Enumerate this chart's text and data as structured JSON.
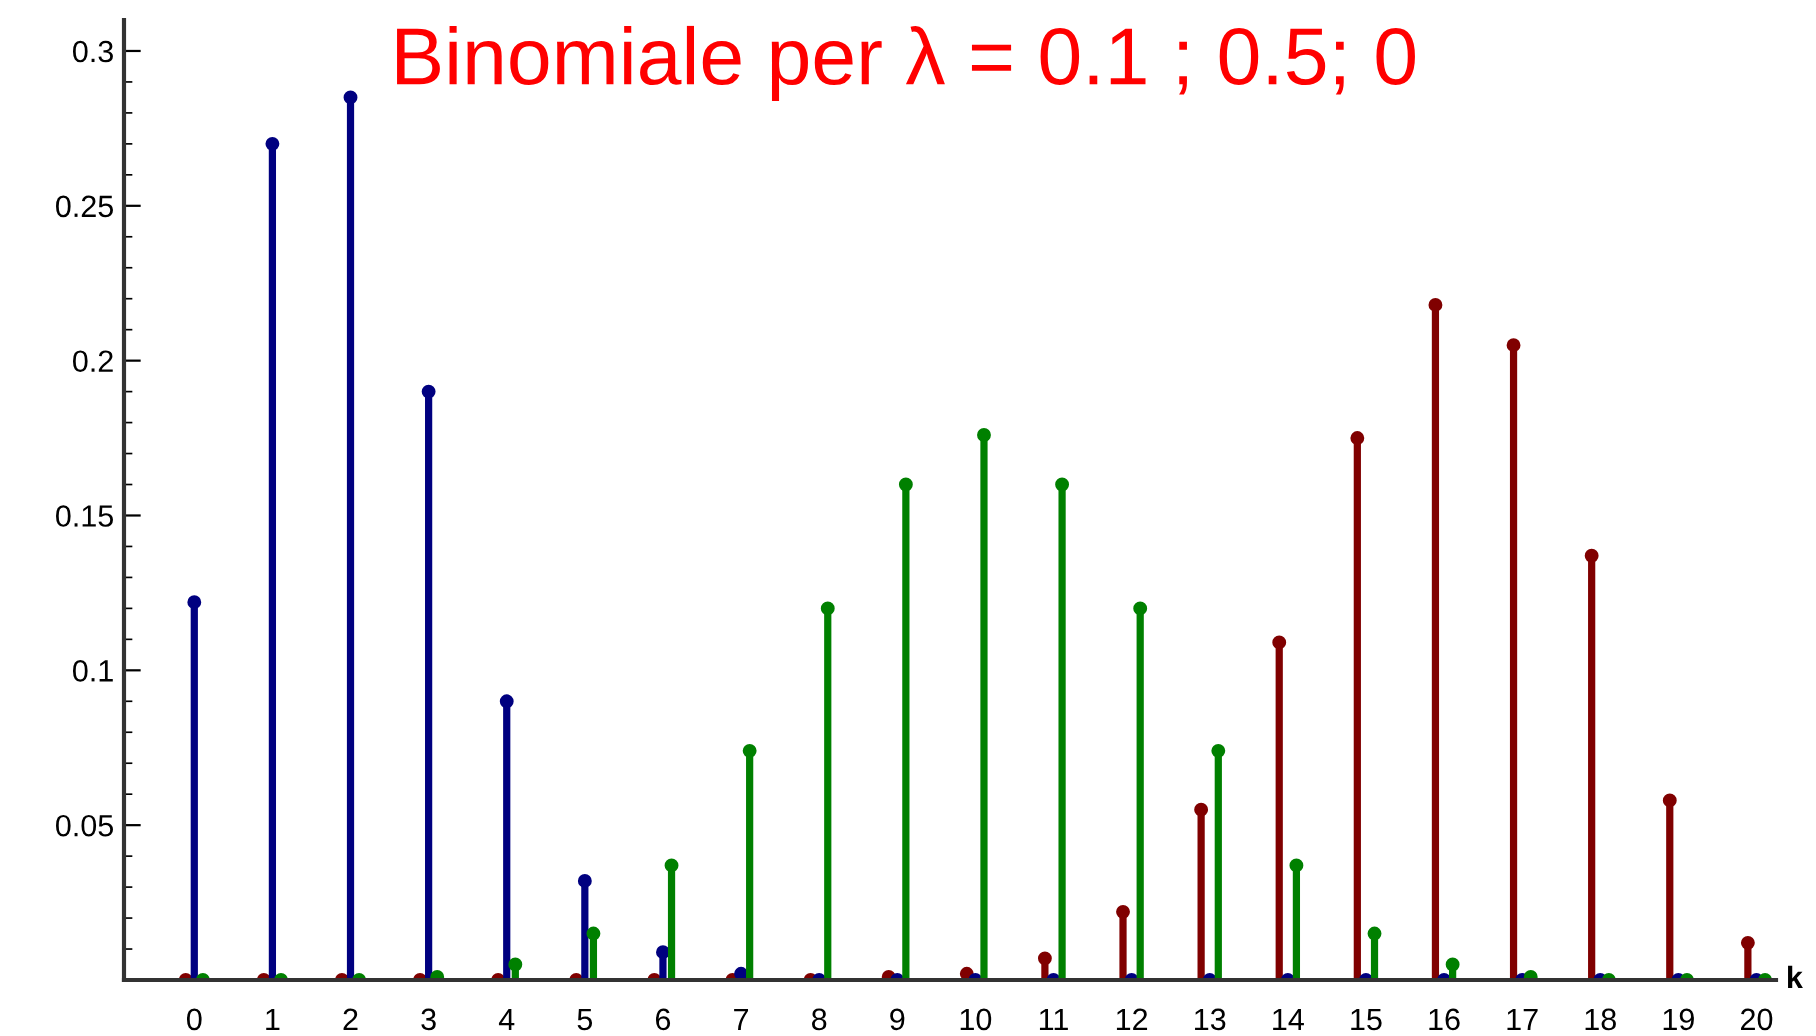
{
  "chart_data": {
    "type": "lollipop",
    "title": "Binomiale per λ = 0.1 ; 0.5; 0",
    "xlabel": "k",
    "categories": [
      "0",
      "1",
      "2",
      "3",
      "4",
      "5",
      "6",
      "7",
      "8",
      "9",
      "10",
      "11",
      "12",
      "13",
      "14",
      "15",
      "16",
      "17",
      "18",
      "19",
      "20"
    ],
    "series": [
      {
        "color": "#800000",
        "values": [
          0,
          0,
          0,
          0,
          0,
          0,
          0,
          0,
          0,
          0.001,
          0.002,
          0.007,
          0.022,
          0.055,
          0.109,
          0.175,
          0.218,
          0.205,
          0.137,
          0.058,
          0.012
        ]
      },
      {
        "color": "#000080",
        "values": [
          0.122,
          0.27,
          0.285,
          0.19,
          0.09,
          0.032,
          0.009,
          0.002,
          0,
          0,
          0,
          0,
          0,
          0,
          0,
          0,
          0,
          0,
          0,
          0,
          0
        ]
      },
      {
        "color": "#008000",
        "values": [
          0,
          0,
          0,
          0.001,
          0.005,
          0.015,
          0.037,
          0.074,
          0.12,
          0.16,
          0.176,
          0.16,
          0.12,
          0.074,
          0.037,
          0.015,
          0.005,
          0.001,
          0,
          0,
          0
        ]
      }
    ],
    "ylim": [
      0,
      0.31
    ],
    "yticks": [
      0.05,
      0.1,
      0.15,
      0.2,
      0.25,
      0.3
    ],
    "marker": "circle",
    "legend": false
  }
}
